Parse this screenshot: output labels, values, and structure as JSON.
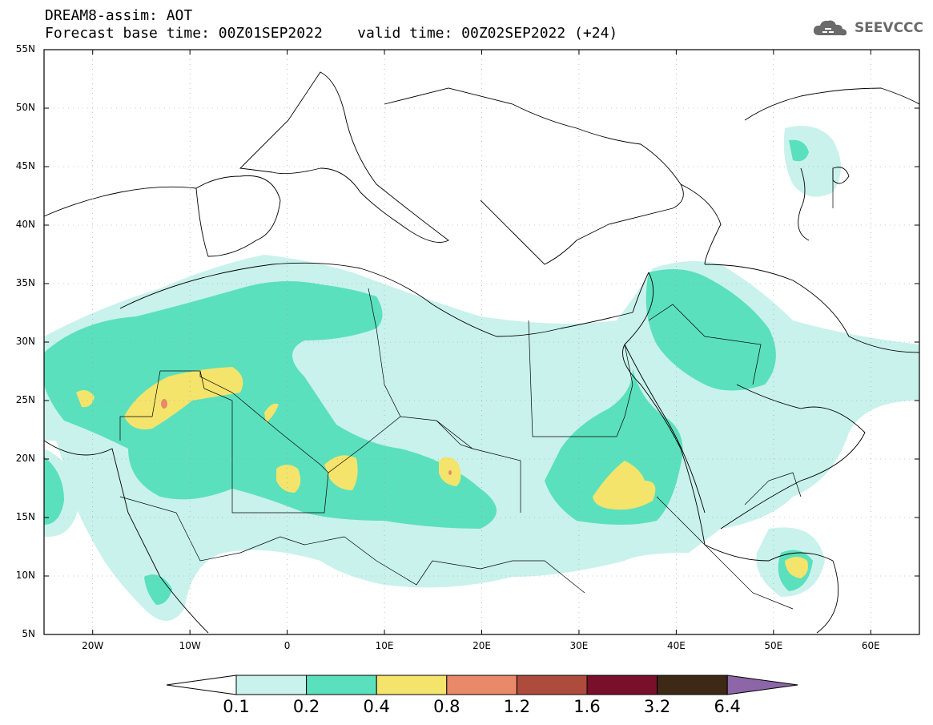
{
  "header": {
    "title": "DREAM8-assim: AOT",
    "subtitle": "Forecast base time: 00Z01SEP2022    valid time: 00Z02SEP2022 (+24)"
  },
  "brand": {
    "name": "SEEVCCC",
    "icon": "cloud-icon"
  },
  "map": {
    "lat_labels": [
      "55N",
      "50N",
      "45N",
      "40N",
      "35N",
      "30N",
      "25N",
      "20N",
      "15N",
      "10N",
      "5N"
    ],
    "lon_labels": [
      "20W",
      "10W",
      "0",
      "10E",
      "20E",
      "30E",
      "40E",
      "50E",
      "60E"
    ],
    "lon_range": [
      -25,
      65
    ],
    "lat_range": [
      5,
      55
    ],
    "colors": {
      "c1": "#c9f2ec",
      "c2": "#5be0bd",
      "c3": "#f4e46c",
      "c4": "#e9896a",
      "c5": "#ad4c3d",
      "c6": "#7a0f2b",
      "c7": "#3d2916",
      "c8": "#8d66a8"
    }
  },
  "colorbar": {
    "labels": [
      "0.1",
      "0.2",
      "0.4",
      "0.8",
      "1.2",
      "1.6",
      "3.2",
      "6.4"
    ],
    "colors": [
      "#c9f2ec",
      "#5be0bd",
      "#f4e46c",
      "#e9896a",
      "#ad4c3d",
      "#7a0f2b",
      "#3d2916"
    ],
    "under_color": "#ffffff",
    "over_color": "#8d66a8"
  }
}
